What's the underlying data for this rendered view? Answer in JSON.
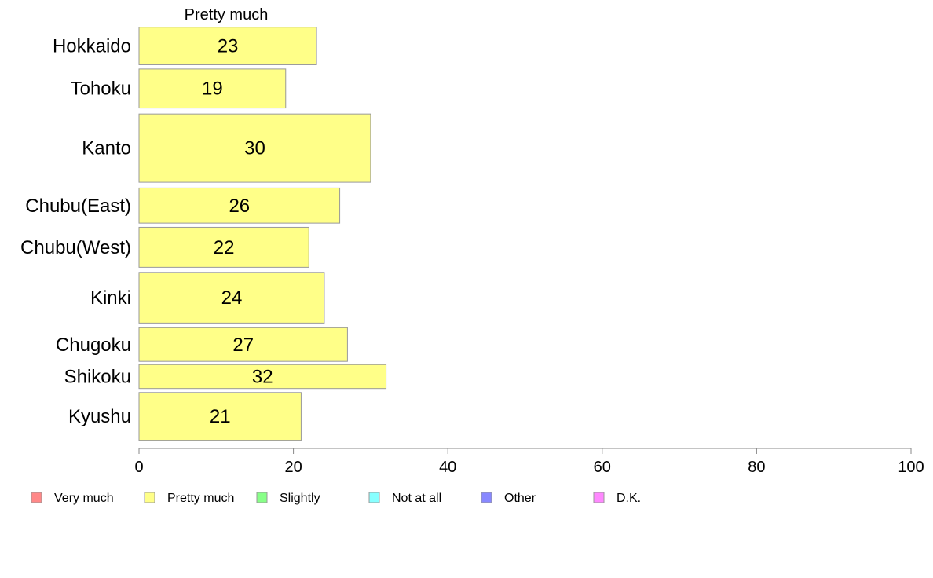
{
  "chart_data": {
    "type": "bar",
    "orientation": "horizontal",
    "column_title": "Pretty much",
    "categories": [
      "Hokkaido",
      "Tohoku",
      "Kanto",
      "Chubu(East)",
      "Chubu(West)",
      "Kinki",
      "Chugoku",
      "Shikoku",
      "Kyushu"
    ],
    "values": [
      23,
      19,
      30,
      26,
      22,
      24,
      27,
      32,
      21
    ],
    "band_weights": [
      0.77,
      0.8,
      1.4,
      0.72,
      0.82,
      1.04,
      0.69,
      0.49,
      0.98
    ],
    "xlim": [
      0,
      100
    ],
    "x_ticks": [
      0,
      20,
      40,
      60,
      80,
      100
    ],
    "bar_color": "#ffff88",
    "bar_stroke": "#999999",
    "legend": [
      {
        "label": "Very much",
        "color": "#ff8888"
      },
      {
        "label": "Pretty much",
        "color": "#ffff88"
      },
      {
        "label": "Slightly",
        "color": "#88ff88"
      },
      {
        "label": "Not at all",
        "color": "#88ffff"
      },
      {
        "label": "Other",
        "color": "#8888ff"
      },
      {
        "label": "D.K.",
        "color": "#ff88ff"
      }
    ],
    "legend_position": "bottom",
    "grid": false
  }
}
